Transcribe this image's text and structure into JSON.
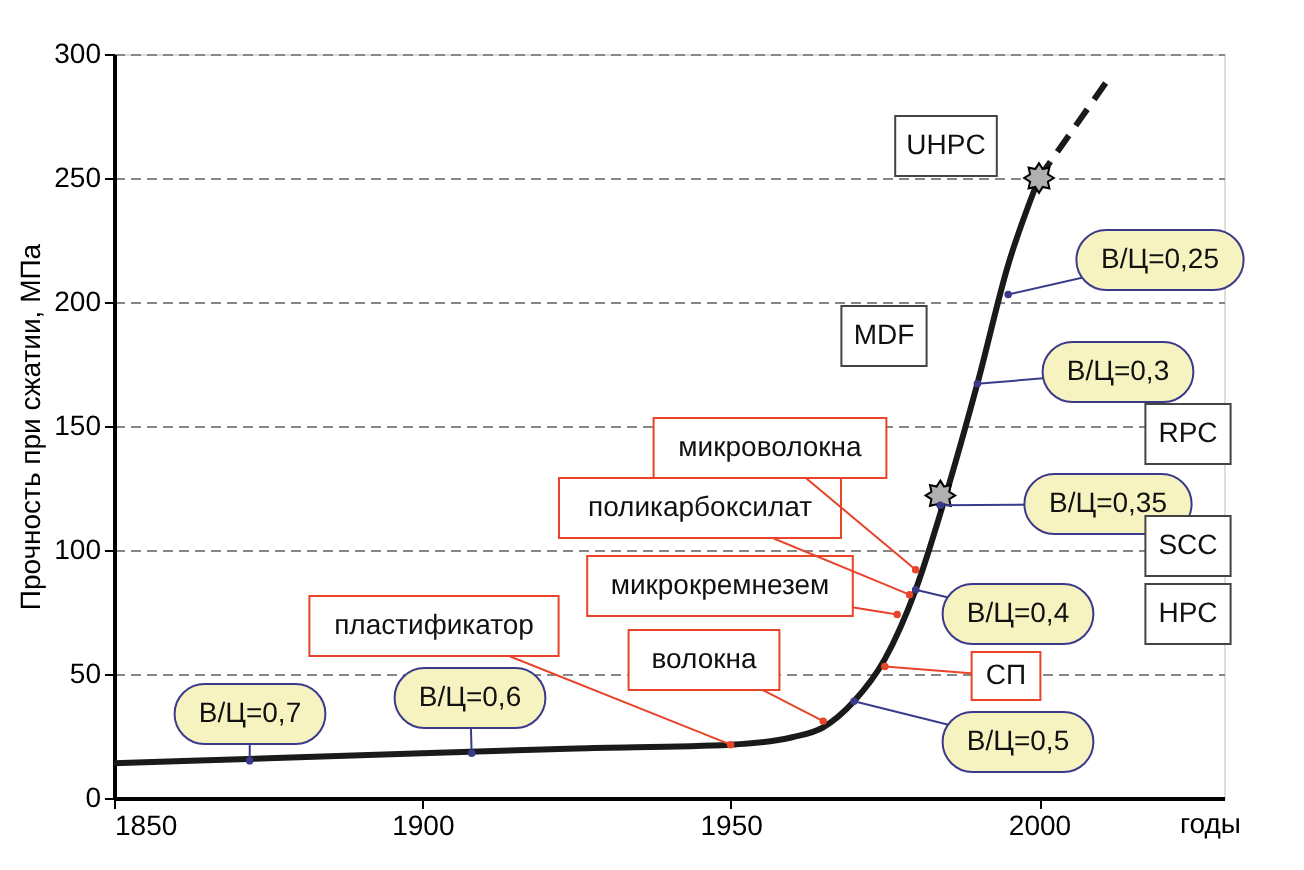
{
  "chart_data": {
    "type": "line",
    "ylabel": "Прочность при сжатии, МПа",
    "xlabel": "годы",
    "xlim": [
      1850,
      2030
    ],
    "xticks": [
      1850,
      1900,
      1950,
      2000
    ],
    "ylim": [
      0,
      300
    ],
    "yticks": [
      0,
      50,
      100,
      150,
      200,
      250,
      300
    ],
    "grid": "y",
    "series": [
      {
        "color": "#1a1a1a",
        "line_style": "solid",
        "x": [
          1850,
          1875,
          1900,
          1925,
          1950,
          1960,
          1965,
          1970,
          1975,
          1980,
          1985,
          1990,
          1995,
          2000
        ],
        "values": [
          14,
          16,
          18,
          20,
          21.5,
          24.5,
          28.5,
          39,
          56,
          84,
          123,
          167,
          215,
          250
        ]
      },
      {
        "color": "#1a1a1a",
        "line_style": "dashed",
        "x": [
          2000,
          2011
        ],
        "values": [
          250,
          289
        ]
      },
      {
        "type": "scatter",
        "color": "#b0b0b0",
        "marker": "star",
        "x": [
          1984,
          2000
        ],
        "values": [
          122,
          250
        ]
      }
    ],
    "annotations": [
      {
        "text": "В/Ц=0,7",
        "x": 1872,
        "y": 15
      },
      {
        "text": "В/Ц=0,6",
        "x": 1908,
        "y": 18
      },
      {
        "text": "В/Ц=0,5",
        "x": 1970,
        "y": 39
      },
      {
        "text": "В/Ц=0,4",
        "x": 1980,
        "y": 84
      },
      {
        "text": "В/Ц=0,35",
        "x": 1984,
        "y": 118
      },
      {
        "text": "В/Ц=0,3",
        "x": 1990,
        "y": 167
      },
      {
        "text": "В/Ц=0,25",
        "x": 1995,
        "y": 203
      },
      {
        "text": "СП",
        "x": 1975,
        "y": 53
      },
      {
        "text": "волокна",
        "x": 1965,
        "y": 31
      },
      {
        "text": "пластификатор",
        "x": 1950,
        "y": 21.5
      },
      {
        "text": "микрокремнезем",
        "x": 1977,
        "y": 74
      },
      {
        "text": "поликарбоксилат",
        "x": 1979,
        "y": 82
      },
      {
        "text": "микроволокна",
        "x": 1980,
        "y": 92
      },
      "UHPC",
      "MDF",
      "RPC",
      "SCC",
      "HPC"
    ]
  }
}
